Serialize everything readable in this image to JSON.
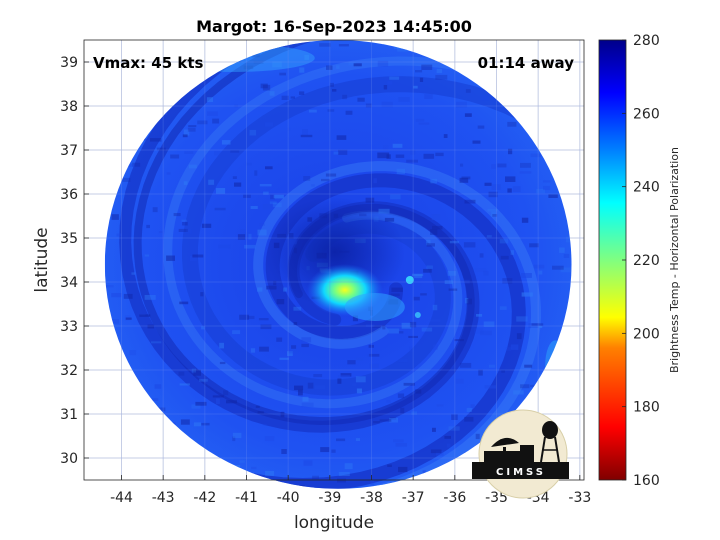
{
  "title": "Margot: 16-Sep-2023 14:45:00",
  "annotations": {
    "vmax": "Vmax: 45 kts",
    "time_away": "01:14 away"
  },
  "axes": {
    "xlabel": "longitude",
    "ylabel": "latitude",
    "xlim": [
      -44.9,
      -32.9
    ],
    "ylim": [
      29.5,
      39.5
    ],
    "xticks": [
      -44,
      -43,
      -42,
      -41,
      -40,
      -39,
      -38,
      -37,
      -36,
      -35,
      -34,
      -33
    ],
    "yticks": [
      30,
      31,
      32,
      33,
      34,
      35,
      36,
      37,
      38,
      39
    ],
    "grid": true
  },
  "colorbar": {
    "label": "Brightness Temp - Horizontal Polarization",
    "min": 160,
    "max": 280,
    "ticks": [
      160,
      180,
      200,
      220,
      240,
      260,
      280
    ],
    "colormap": "jet",
    "placement": "right"
  },
  "image": {
    "storm_center": {
      "lon": -38.4,
      "lat": 34.0
    },
    "swath_center": {
      "lon": -38.8,
      "lat": 34.4
    },
    "swath_radius_lon": 5.6,
    "swath_radius_lat": 5.1,
    "background_temp_k": 262,
    "core_min_temp_k": 212
  },
  "logo": {
    "text": "CIMSS"
  }
}
